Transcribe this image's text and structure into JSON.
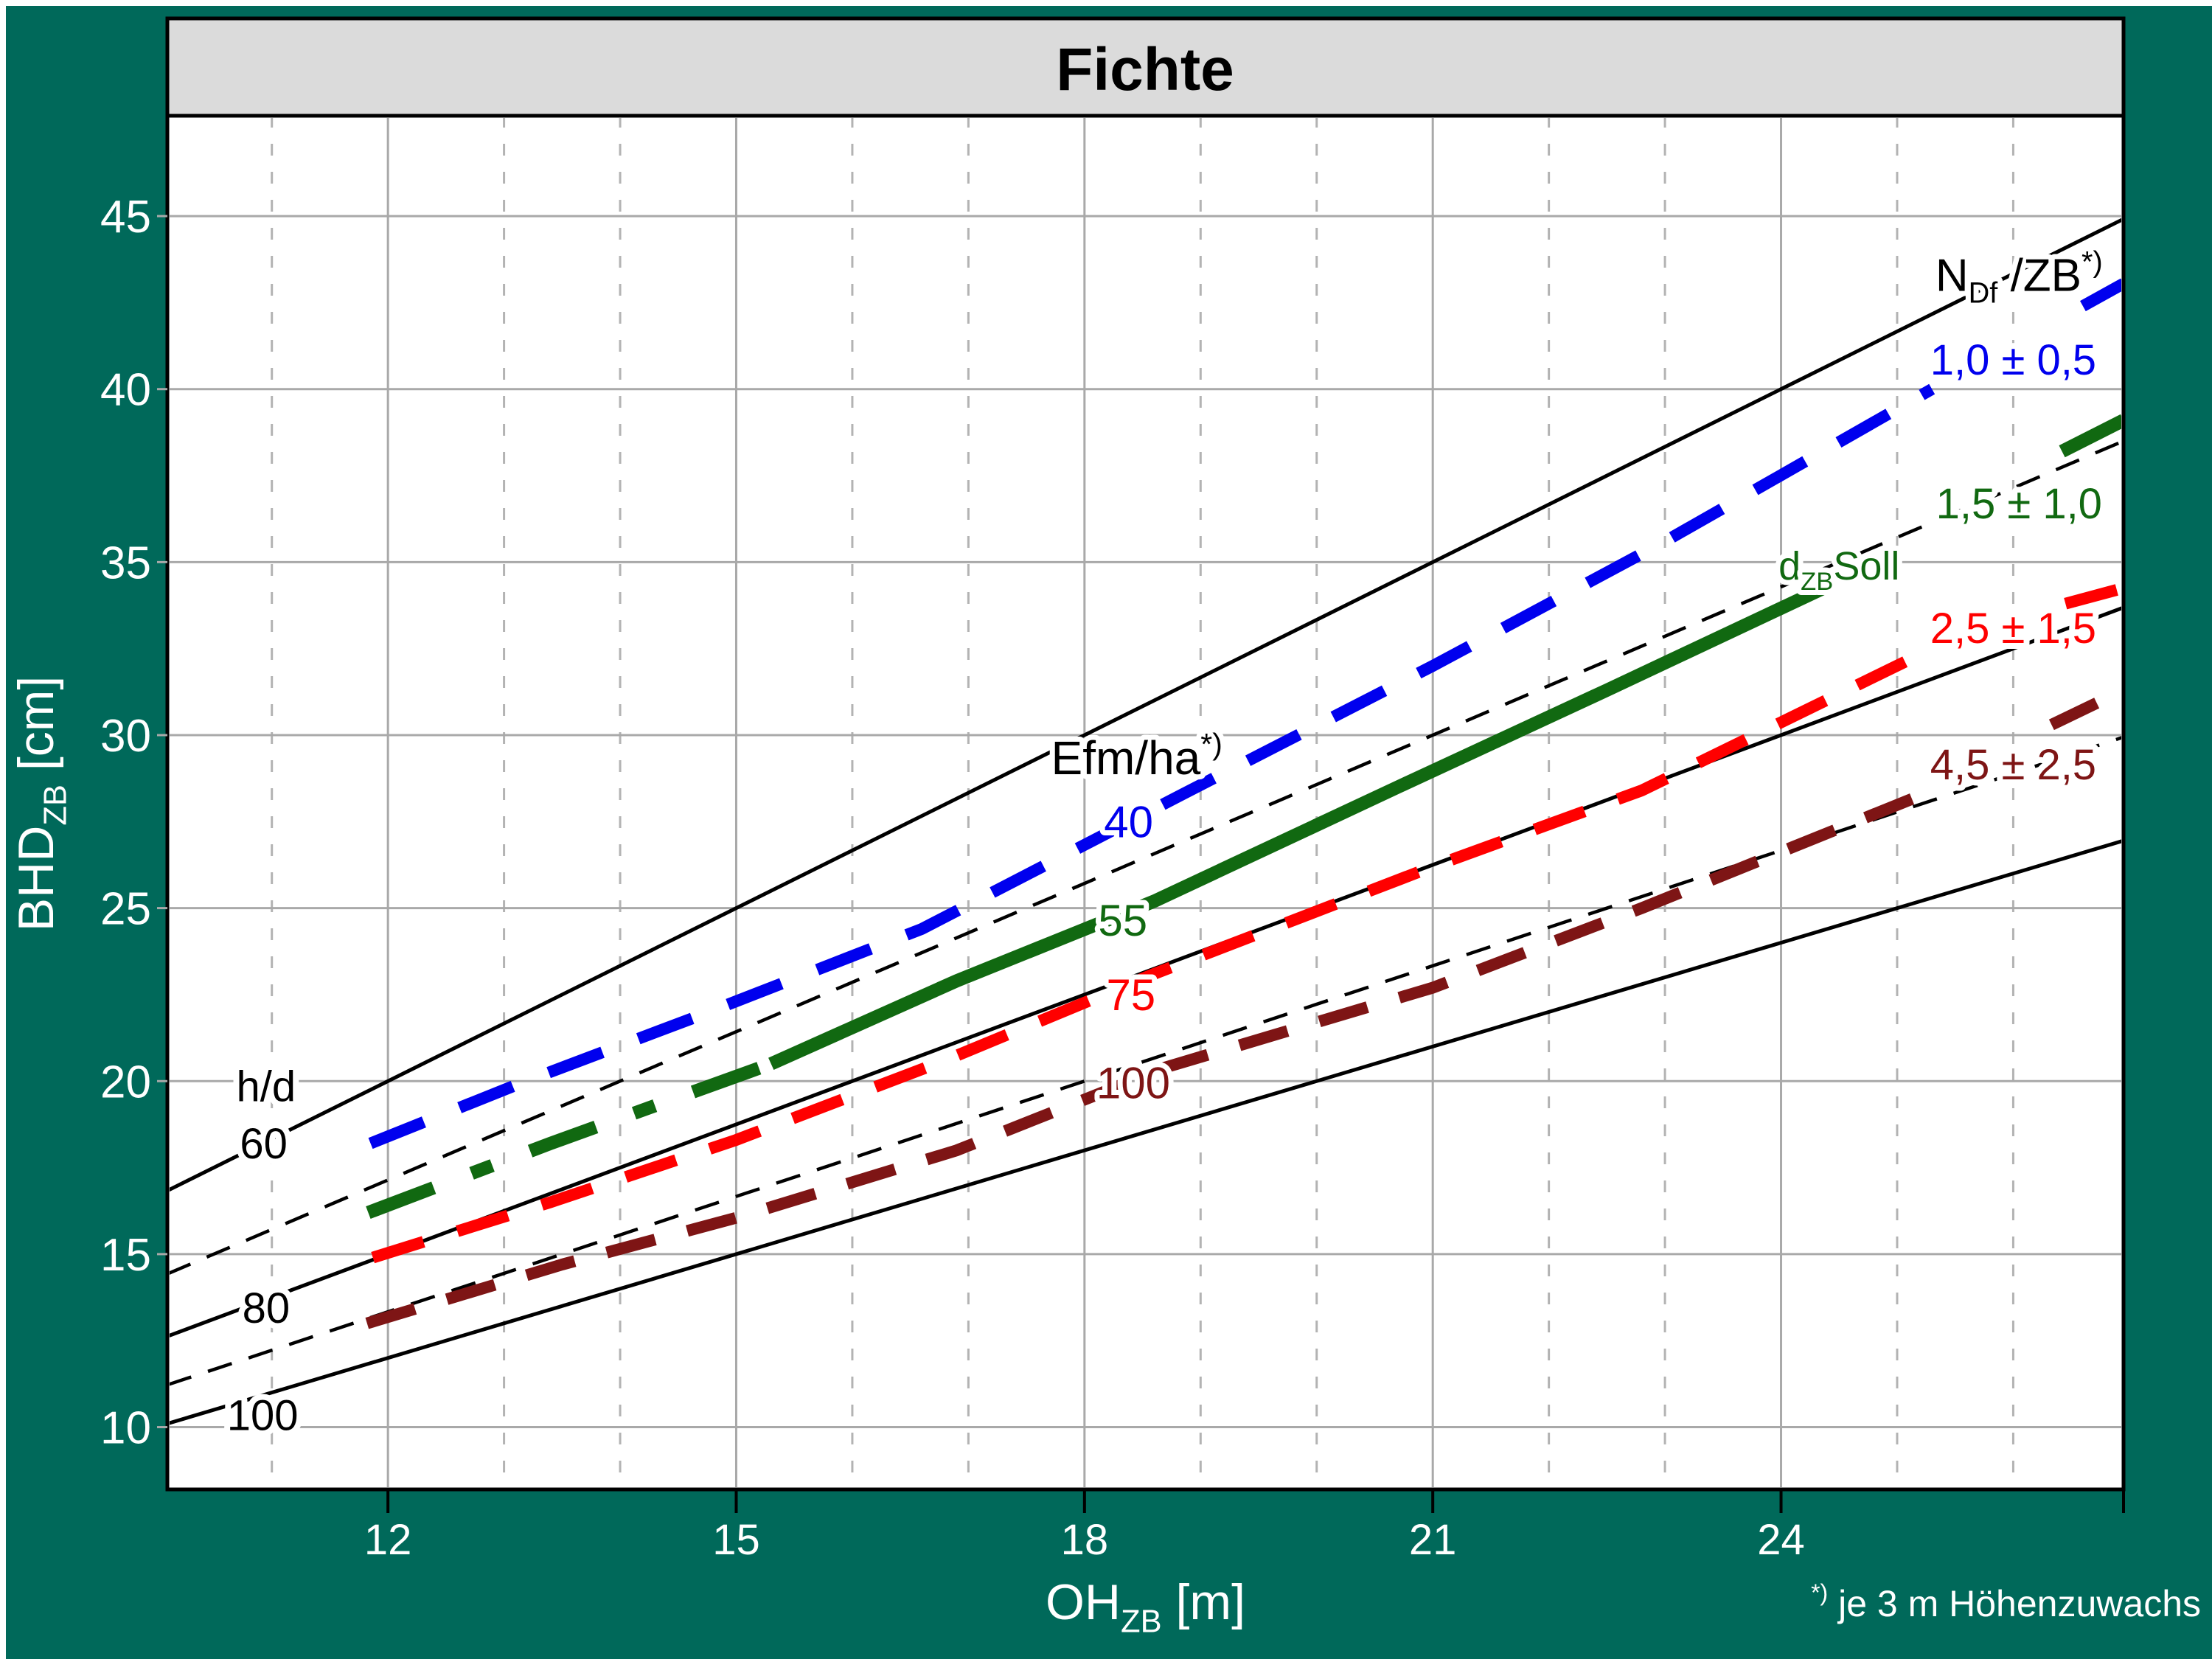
{
  "page": {
    "background": "#00695A",
    "outer_edge": "#FFFFFF"
  },
  "title_bar": {
    "label": "Fichte",
    "bg": "#DBDBDB",
    "text_color": "#000000"
  },
  "footnote": {
    "sup": "*)",
    "text": " je 3 m Höhenzuwachs",
    "color": "#FFFFFF"
  },
  "axes": {
    "x": {
      "title_parts": [
        {
          "t": "OH"
        },
        {
          "t": "ZB",
          "sub": true
        },
        {
          "t": " [m]"
        }
      ],
      "tick_labels": [
        "12",
        "15",
        "18",
        "21",
        "24"
      ],
      "color": "#FFFFFF"
    },
    "y": {
      "title_parts": [
        {
          "t": "BHD"
        },
        {
          "t": "ZB",
          "sub": true
        },
        {
          "t": " [cm]"
        }
      ],
      "tick_labels": [
        "10",
        "15",
        "20",
        "25",
        "30",
        "35",
        "40",
        "45"
      ],
      "color": "#FFFFFF"
    }
  },
  "chart_data": {
    "type": "line",
    "title": "Fichte",
    "xlabel": "OH_ZB [m]",
    "ylabel": "BHD_ZB [cm]",
    "xlim": [
      10.1,
      26.95
    ],
    "ylim": [
      8.2,
      47.9
    ],
    "x_major_ticks": [
      12,
      15,
      18,
      21,
      24
    ],
    "x_minor_step": 1,
    "y_ticks": [
      10,
      15,
      20,
      25,
      30,
      35,
      40,
      45
    ],
    "grid": {
      "major_color": "#A9A9A9",
      "minor_color": "#B3B3B3",
      "minor_dash": "16 22",
      "width": 3
    },
    "hd_lines": [
      {
        "ratio": 60,
        "style": "solid",
        "label": "60"
      },
      {
        "ratio": 70,
        "style": "dashed",
        "label": ""
      },
      {
        "ratio": 80,
        "style": "solid",
        "label": "80"
      },
      {
        "ratio": 90,
        "style": "dashed",
        "label": ""
      },
      {
        "ratio": 100,
        "style": "solid",
        "label": "100"
      }
    ],
    "series": [
      {
        "id": "ndf-1-0",
        "name": "NDf/ZB 1,0 ± 0,5  (Efm/ha 40)",
        "color": "#0000EE",
        "width": 16,
        "dash": "78 52",
        "segments": [
          [
            [
              11.85,
              18.2
            ],
            [
              13.15,
              19.95
            ],
            [
              14.65,
              21.85
            ],
            [
              16.6,
              24.4
            ],
            [
              18.85,
              28.3
            ],
            [
              21,
              32.0
            ],
            [
              23,
              35.6
            ],
            [
              25.3,
              40.0
            ]
          ],
          [
            [
              26.6,
              42.4
            ],
            [
              26.95,
              43.05
            ]
          ]
        ]
      },
      {
        "id": "dzb-soll",
        "name": "dZB Soll — NDf/ZB 1,5 ± 1,0  (Efm/ha 55)",
        "color": "#116911",
        "width": 18,
        "segments": [
          [
            [
              11.83,
              16.2
            ],
            [
              13.4,
              18.2
            ],
            [
              15.3,
              20.5
            ]
          ],
          [
            [
              15.3,
              20.5
            ],
            [
              16.9,
              22.9
            ],
            [
              18.6,
              25.2
            ],
            [
              20.7,
              28.5
            ],
            [
              22.5,
              31.3
            ],
            [
              24.4,
              34.3
            ]
          ],
          [
            [
              26.42,
              38.2
            ],
            [
              26.95,
              39.1
            ]
          ]
        ],
        "segment_dashes": [
          "95 55 30 55",
          null,
          null
        ]
      },
      {
        "id": "ndf-2-5",
        "name": "NDf/ZB 2,5 ± 1,5  (Efm/ha 75)",
        "color": "#FF0000",
        "width": 16,
        "dash": "72 48",
        "segments": [
          [
            [
              11.87,
              14.9
            ],
            [
              13.4,
              16.5
            ],
            [
              15,
              18.3
            ],
            [
              16.8,
              20.6
            ],
            [
              18.6,
              23.1
            ],
            [
              21,
              26.2
            ],
            [
              22.8,
              28.4
            ],
            [
              25.3,
              32.5
            ]
          ],
          [
            [
              26.45,
              33.8
            ],
            [
              26.95,
              34.25
            ]
          ]
        ]
      },
      {
        "id": "ndf-4-5",
        "name": "NDf/ZB 4,5 ± 2,5  (Efm/ha 100)",
        "color": "#7E1515",
        "width": 16,
        "dash": "68 45",
        "segments": [
          [
            [
              11.82,
              13.0
            ],
            [
              13.5,
              14.7
            ],
            [
              15,
              16.05
            ],
            [
              16.9,
              18.0
            ],
            [
              18.7,
              20.4
            ],
            [
              21,
              22.7
            ],
            [
              22.8,
              25.0
            ],
            [
              25.16,
              28.2
            ]
          ],
          [
            [
              26.33,
              30.3
            ],
            [
              26.95,
              31.3
            ]
          ]
        ]
      }
    ],
    "labels": [
      {
        "id": "hd-title",
        "parts": [
          {
            "t": "h/d"
          }
        ],
        "x": 10.95,
        "y": 19.85,
        "color": "#000000",
        "size": 58,
        "halo": 16
      },
      {
        "id": "hd-60",
        "parts": [
          {
            "t": "60"
          }
        ],
        "x": 10.93,
        "y": 18.2,
        "color": "#000000",
        "size": 58,
        "halo": 16
      },
      {
        "id": "hd-80",
        "parts": [
          {
            "t": "80"
          }
        ],
        "x": 10.95,
        "y": 13.45,
        "color": "#000000",
        "size": 58,
        "halo": 16
      },
      {
        "id": "hd-100",
        "parts": [
          {
            "t": "100"
          }
        ],
        "x": 10.92,
        "y": 10.35,
        "color": "#000000",
        "size": 58,
        "halo": 16
      },
      {
        "id": "efm-title",
        "parts": [
          {
            "t": "Efm/ha"
          },
          {
            "t": "*)",
            "sup": true
          }
        ],
        "x": 18.45,
        "y": 29.35,
        "color": "#000000",
        "size": 64,
        "halo": 14
      },
      {
        "id": "efm-40",
        "parts": [
          {
            "t": "40"
          }
        ],
        "x": 18.38,
        "y": 27.5,
        "color": "#0000EE",
        "size": 60,
        "halo": 14
      },
      {
        "id": "efm-55",
        "parts": [
          {
            "t": "55"
          }
        ],
        "x": 18.33,
        "y": 24.65,
        "color": "#116911",
        "size": 60,
        "halo": 14
      },
      {
        "id": "efm-75",
        "parts": [
          {
            "t": "75"
          }
        ],
        "x": 18.4,
        "y": 22.5,
        "color": "#FF0000",
        "size": 60,
        "halo": 14
      },
      {
        "id": "efm-100",
        "parts": [
          {
            "t": "100"
          }
        ],
        "x": 18.42,
        "y": 19.95,
        "color": "#7E1515",
        "size": 60,
        "halo": 14
      },
      {
        "id": "ndf-title",
        "parts": [
          {
            "t": "N"
          },
          {
            "t": "Df",
            "sub": true
          },
          {
            "t": " /ZB"
          },
          {
            "t": "*)",
            "sup": true
          }
        ],
        "x": 26.05,
        "y": 43.3,
        "color": "#000000",
        "size": 62,
        "halo": 14
      },
      {
        "id": "n-1-0",
        "parts": [
          {
            "t": "1,0 ± 0,5"
          }
        ],
        "x": 26.0,
        "y": 40.85,
        "color": "#0000EE",
        "size": 58,
        "halo": 16
      },
      {
        "id": "n-1-5",
        "parts": [
          {
            "t": "1,5 ± 1,0"
          }
        ],
        "x": 26.05,
        "y": 36.7,
        "color": "#116911",
        "size": 58,
        "halo": 16
      },
      {
        "id": "n-2-5",
        "parts": [
          {
            "t": "2,5 ± 1,5"
          }
        ],
        "x": 26.0,
        "y": 33.1,
        "color": "#FF0000",
        "size": 58,
        "halo": 16
      },
      {
        "id": "n-4-5",
        "parts": [
          {
            "t": "4,5 ± 2,5"
          }
        ],
        "x": 26.0,
        "y": 29.15,
        "color": "#7E1515",
        "size": 58,
        "halo": 16
      },
      {
        "id": "dzb-soll-label",
        "parts": [
          {
            "t": "d"
          },
          {
            "t": "ZB",
            "sub": true
          },
          {
            "t": "Soll"
          }
        ],
        "x": 24.5,
        "y": 34.9,
        "color": "#116911",
        "size": 54,
        "halo": 14
      }
    ]
  }
}
